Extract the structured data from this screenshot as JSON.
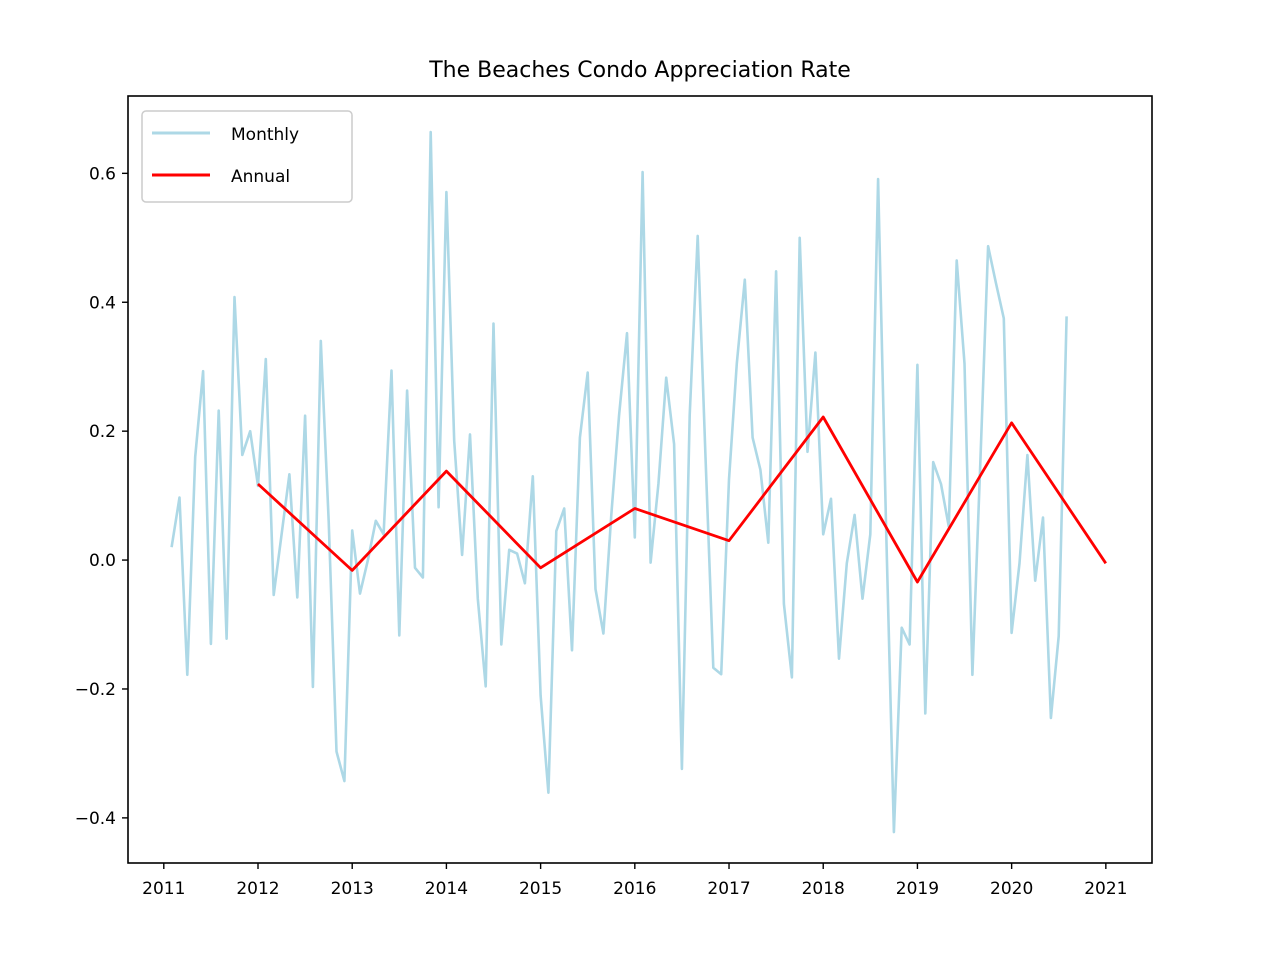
{
  "chart_data": {
    "type": "line",
    "title": "The Beaches Condo Appreciation Rate",
    "xlabel": "",
    "ylabel": "",
    "xlim": [
      2010.62,
      2021.49
    ],
    "ylim": [
      -0.47,
      0.72
    ],
    "x_ticks": [
      2011,
      2012,
      2013,
      2014,
      2015,
      2016,
      2017,
      2018,
      2019,
      2020,
      2021
    ],
    "x_tick_labels": [
      "2011",
      "2012",
      "2013",
      "2014",
      "2015",
      "2016",
      "2017",
      "2018",
      "2019",
      "2020",
      "2021"
    ],
    "y_ticks": [
      -0.4,
      -0.2,
      0.0,
      0.2,
      0.4,
      0.6
    ],
    "y_tick_labels": [
      "−0.4",
      "−0.2",
      "0.0",
      "0.2",
      "0.4",
      "0.6"
    ],
    "grid": false,
    "legend_position": "top-left",
    "series": [
      {
        "name": "Monthly",
        "color": "#add8e6",
        "x": [
          2011.083,
          2011.167,
          2011.25,
          2011.333,
          2011.417,
          2011.5,
          2011.583,
          2011.667,
          2011.75,
          2011.833,
          2011.917,
          2012.0,
          2012.083,
          2012.167,
          2012.25,
          2012.333,
          2012.417,
          2012.5,
          2012.583,
          2012.667,
          2012.75,
          2012.833,
          2012.917,
          2013.0,
          2013.083,
          2013.167,
          2013.25,
          2013.333,
          2013.417,
          2013.5,
          2013.583,
          2013.667,
          2013.75,
          2013.833,
          2013.917,
          2014.0,
          2014.083,
          2014.167,
          2014.25,
          2014.333,
          2014.417,
          2014.5,
          2014.583,
          2014.667,
          2014.75,
          2014.833,
          2014.917,
          2015.0,
          2015.083,
          2015.167,
          2015.25,
          2015.333,
          2015.417,
          2015.5,
          2015.583,
          2015.667,
          2015.75,
          2015.833,
          2015.917,
          2016.0,
          2016.083,
          2016.167,
          2016.25,
          2016.333,
          2016.417,
          2016.5,
          2016.583,
          2016.667,
          2016.75,
          2016.833,
          2016.917,
          2017.0,
          2017.083,
          2017.167,
          2017.25,
          2017.333,
          2017.417,
          2017.5,
          2017.583,
          2017.667,
          2017.75,
          2017.833,
          2017.917,
          2018.0,
          2018.083,
          2018.167,
          2018.25,
          2018.333,
          2018.417,
          2018.5,
          2018.583,
          2018.667,
          2018.75,
          2018.833,
          2018.917,
          2019.0,
          2019.083,
          2019.167,
          2019.25,
          2019.333,
          2019.417,
          2019.5,
          2019.583,
          2019.667,
          2019.75,
          2019.833,
          2019.917,
          2020.0,
          2020.083,
          2020.167,
          2020.25,
          2020.333,
          2020.417,
          2020.5,
          2020.583
        ],
        "values": [
          0.02,
          0.097,
          -0.178,
          0.16,
          0.293,
          -0.13,
          0.232,
          -0.122,
          0.408,
          0.163,
          0.2,
          0.115,
          0.312,
          -0.054,
          0.04,
          0.133,
          -0.058,
          0.224,
          -0.197,
          0.34,
          0.06,
          -0.297,
          -0.343,
          0.046,
          -0.052,
          0.0,
          0.061,
          0.04,
          0.294,
          -0.117,
          0.263,
          -0.012,
          -0.027,
          0.664,
          0.082,
          0.571,
          0.185,
          0.008,
          0.195,
          -0.06,
          -0.196,
          0.367,
          -0.131,
          0.016,
          0.01,
          -0.036,
          0.13,
          -0.21,
          -0.361,
          0.045,
          0.08,
          -0.14,
          0.19,
          0.291,
          -0.045,
          -0.114,
          0.07,
          0.225,
          0.352,
          0.035,
          0.602,
          -0.004,
          0.118,
          0.283,
          0.18,
          -0.324,
          0.225,
          0.503,
          0.16,
          -0.167,
          -0.177,
          0.125,
          0.305,
          0.435,
          0.19,
          0.14,
          0.027,
          0.448,
          -0.068,
          -0.182,
          0.5,
          0.168,
          0.322,
          0.04,
          0.095,
          -0.153,
          -0.005,
          0.07,
          -0.06,
          0.04,
          0.591,
          0.05,
          -0.422,
          -0.105,
          -0.131,
          0.303,
          -0.238,
          0.152,
          0.118,
          0.052,
          0.465,
          0.305,
          -0.178,
          0.15,
          0.487,
          0.43,
          0.375,
          -0.113,
          -0.005,
          0.163,
          -0.032,
          0.066,
          -0.245,
          -0.118,
          0.378
        ]
      },
      {
        "name": "Annual",
        "color": "#ff0000",
        "x": [
          2012,
          2013,
          2014,
          2015,
          2016,
          2017,
          2018,
          2019,
          2020,
          2021
        ],
        "values": [
          0.118,
          -0.016,
          0.138,
          -0.012,
          0.08,
          0.03,
          0.222,
          -0.034,
          0.213,
          -0.005
        ]
      }
    ]
  }
}
